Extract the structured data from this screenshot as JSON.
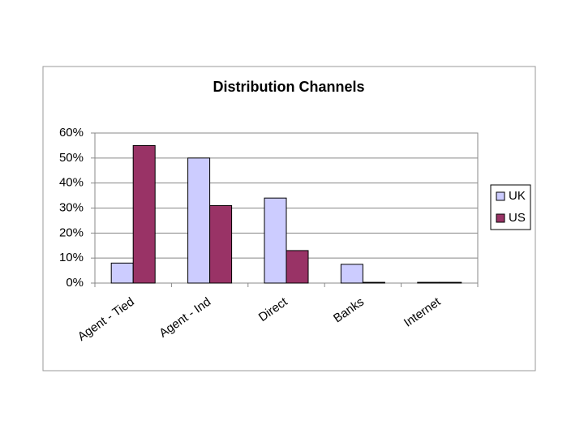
{
  "chart_data": {
    "type": "bar",
    "title": "Distribution Channels",
    "categories": [
      "Agent - Tied",
      "Agent - Ind",
      "Direct",
      "Banks",
      "Internet"
    ],
    "series": [
      {
        "name": "UK",
        "color": "#ccccff",
        "values": [
          8,
          50,
          34,
          7.5,
          0.3
        ]
      },
      {
        "name": "US",
        "color": "#993366",
        "values": [
          55,
          31,
          13,
          0.3,
          0.3
        ]
      }
    ],
    "ylim": [
      0,
      60
    ],
    "yticks": [
      {
        "value": 0,
        "label": "0%"
      },
      {
        "value": 10,
        "label": "10%"
      },
      {
        "value": 20,
        "label": "20%"
      },
      {
        "value": 30,
        "label": "30%"
      },
      {
        "value": 40,
        "label": "40%"
      },
      {
        "value": 50,
        "label": "50%"
      },
      {
        "value": 60,
        "label": "60%"
      }
    ],
    "grid": true,
    "legend": "right"
  }
}
